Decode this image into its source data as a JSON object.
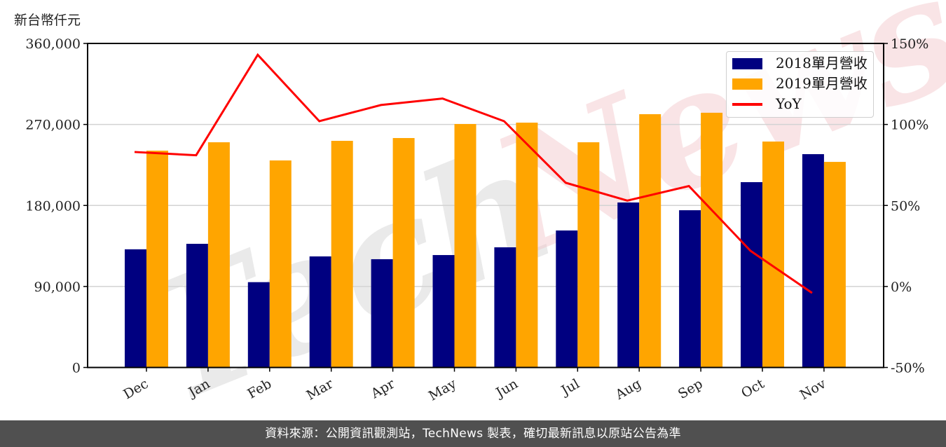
{
  "unit_label": "新台幣仟元",
  "footer": "資料來源：公開資訊觀測站，TechNews 製表，確切最新訊息以原站公告為準",
  "watermark": "TechNews",
  "legend": {
    "items": [
      {
        "label": "2018單月營收",
        "color": "#000080",
        "kind": "bar"
      },
      {
        "label": "2019單月營收",
        "color": "#FFA500",
        "kind": "bar"
      },
      {
        "label": "YoY",
        "color": "#FF0000",
        "kind": "line"
      }
    ]
  },
  "colors": {
    "bar2018": "#000080",
    "bar2019": "#FFA500",
    "yoy": "#FF0000",
    "grid": "#d3d3d3",
    "footer_bg": "#505050"
  },
  "chart_data": {
    "type": "bar",
    "title": "",
    "xlabel": "",
    "ylabel": "新台幣仟元",
    "categories": [
      "Dec",
      "Jan",
      "Feb",
      "Mar",
      "Apr",
      "May",
      "Jun",
      "Jul",
      "Aug",
      "Sep",
      "Oct",
      "Nov"
    ],
    "series": [
      {
        "name": "2018單月營收",
        "type": "bar",
        "axis": "left",
        "color": "#000080",
        "values": [
          131300,
          137400,
          94800,
          123400,
          120300,
          124900,
          133500,
          152200,
          183300,
          174700,
          205900,
          237000
        ]
      },
      {
        "name": "2019單月營收",
        "type": "bar",
        "axis": "left",
        "color": "#FFA500",
        "values": [
          240900,
          250200,
          230000,
          251800,
          254900,
          270500,
          272000,
          250200,
          281400,
          283000,
          251000,
          228400
        ]
      },
      {
        "name": "YoY",
        "type": "line",
        "axis": "right",
        "color": "#FF0000",
        "values": [
          83,
          81,
          143,
          102,
          112,
          116,
          102,
          64,
          53,
          62,
          22,
          -4
        ]
      }
    ],
    "ylim": [
      0,
      360000
    ],
    "yticks": [
      0,
      90000,
      180000,
      270000,
      360000
    ],
    "ytick_labels": [
      "0",
      "90,000",
      "180,000",
      "270,000",
      "360,000"
    ],
    "y2lim": [
      -50,
      150
    ],
    "y2ticks": [
      -50,
      0,
      50,
      100,
      150
    ],
    "y2tick_labels": [
      "-50%",
      "0%",
      "50%",
      "100%",
      "150%"
    ],
    "grid": true,
    "legend_position": "upper right"
  }
}
